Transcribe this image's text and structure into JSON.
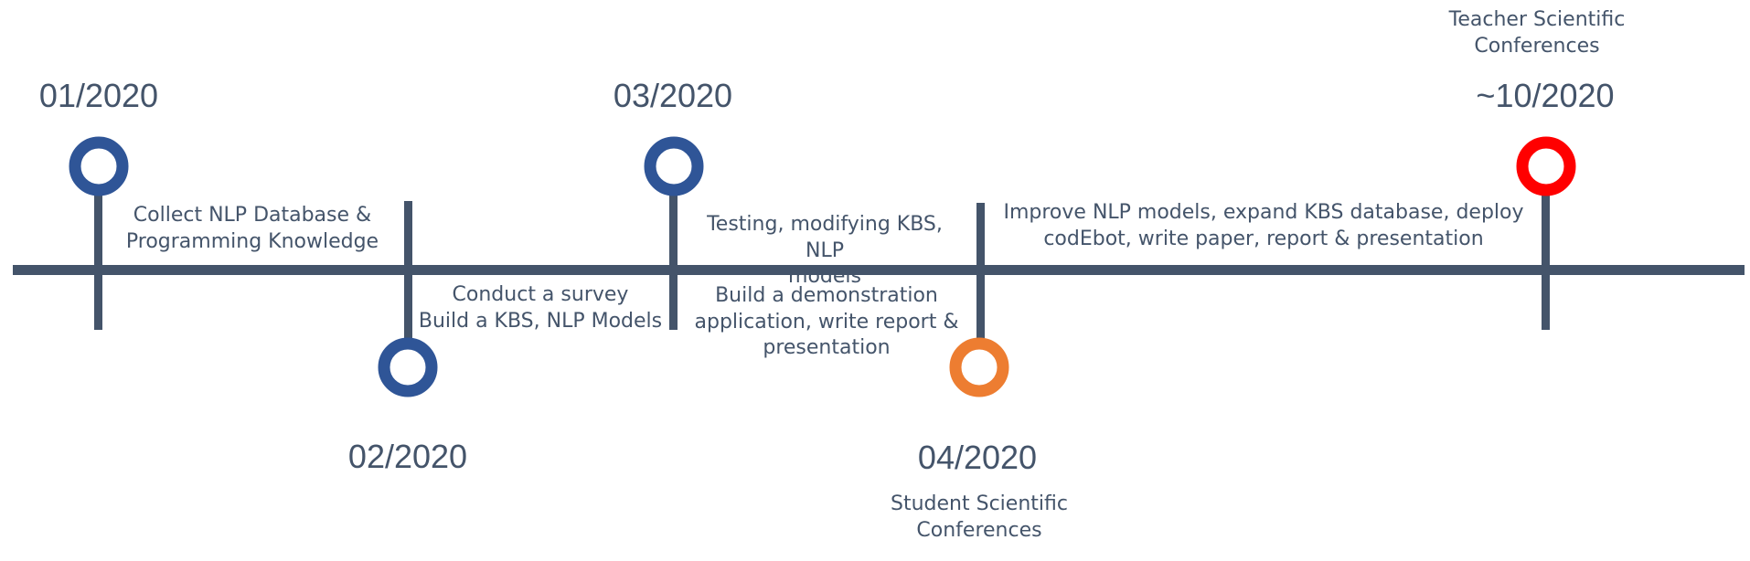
{
  "colors": {
    "line": "#44546A",
    "text": "#44546A",
    "blue": "#2F5597",
    "orange": "#ED7D31",
    "red": "#FF0000"
  },
  "milestones": [
    {
      "date": "01/2020",
      "color": "blue"
    },
    {
      "date": "02/2020",
      "color": "blue"
    },
    {
      "date": "03/2020",
      "color": "blue"
    },
    {
      "date": "04/2020",
      "color": "orange",
      "event": "Student Scientific\nConferences"
    },
    {
      "date": "~10/2020",
      "color": "red",
      "event": "Teacher Scientific\nConferences"
    }
  ],
  "tasks": [
    "Collect NLP Database &\nProgramming Knowledge",
    "Conduct a survey\nBuild a KBS, NLP Models",
    "Testing, modifying KBS, NLP\nmodels",
    "Build a demonstration\napplication, write report &\npresentation",
    "Improve NLP models, expand KBS database, deploy\ncodEbot, write paper, report & presentation"
  ]
}
